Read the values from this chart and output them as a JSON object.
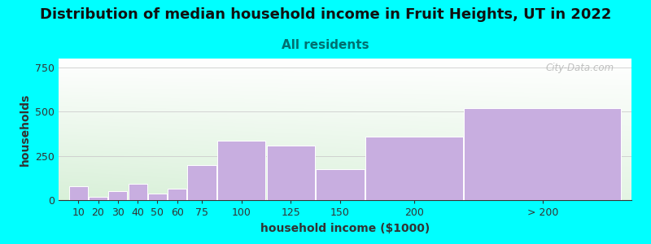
{
  "title": "Distribution of median household income in Fruit Heights, UT in 2022",
  "subtitle": "All residents",
  "xlabel": "household income ($1000)",
  "ylabel": "households",
  "background_color": "#00FFFF",
  "bar_color": "#c8aee0",
  "bar_edge_color": "#ffffff",
  "categories": [
    "10",
    "20",
    "30",
    "40",
    "50",
    "60",
    "75",
    "100",
    "125",
    "150",
    "200",
    "> 200"
  ],
  "left_edges": [
    0,
    10,
    20,
    30,
    40,
    50,
    60,
    75,
    100,
    125,
    150,
    200
  ],
  "widths": [
    10,
    10,
    10,
    10,
    10,
    10,
    15,
    25,
    25,
    25,
    50,
    80
  ],
  "values": [
    80,
    20,
    50,
    90,
    35,
    65,
    200,
    335,
    310,
    175,
    360,
    520
  ],
  "xlim": [
    -5,
    285
  ],
  "ylim": [
    0,
    800
  ],
  "yticks": [
    0,
    250,
    500,
    750
  ],
  "watermark": "City-Data.com",
  "title_fontsize": 13,
  "subtitle_fontsize": 11,
  "axis_label_fontsize": 10,
  "tick_fontsize": 9,
  "subtitle_color": "#007070"
}
